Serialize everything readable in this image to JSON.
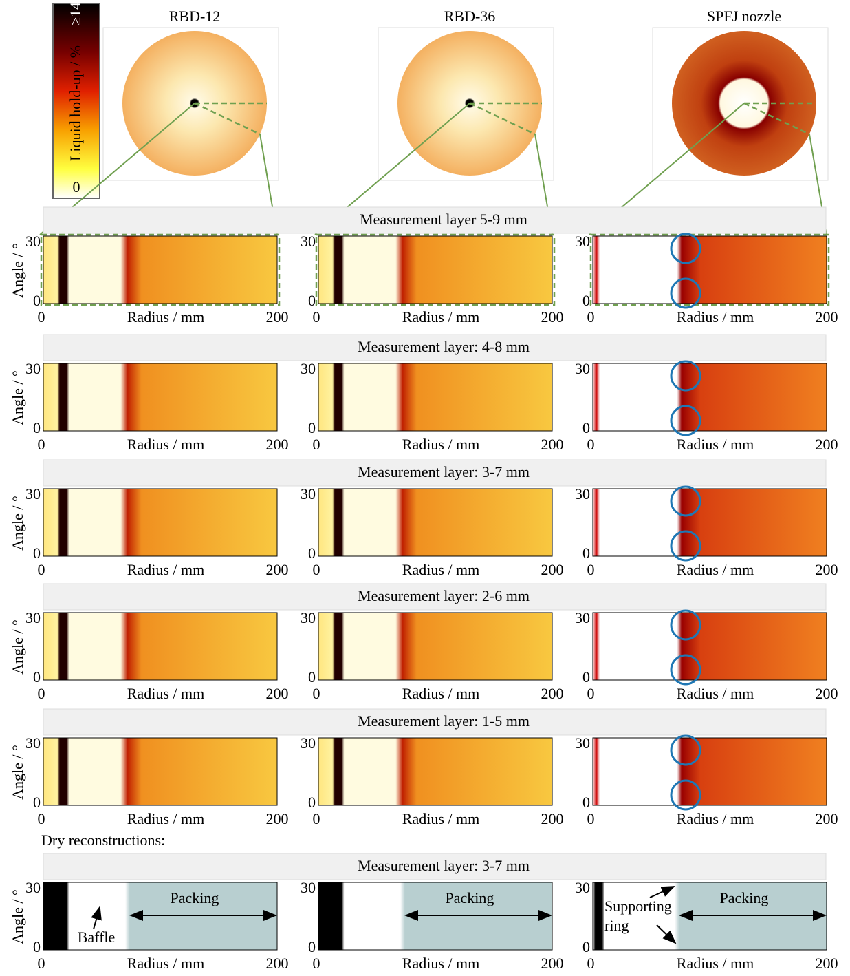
{
  "colorbar": {
    "max_label": "≥14",
    "min_label": "0",
    "label": "Liquid hold-up / %"
  },
  "columns": [
    "RBD-12",
    "RBD-36",
    "SPFJ nozzle"
  ],
  "axes": {
    "y_label": "Angle / °",
    "x_label": "Radius / mm",
    "xticks": [
      "0",
      "200"
    ],
    "yticks": [
      "0",
      "30"
    ]
  },
  "layers": [
    {
      "title": "Measurement layer 5-9 mm"
    },
    {
      "title": "Measurement layer: 4-8 mm"
    },
    {
      "title": "Measurement layer: 3-7 mm"
    },
    {
      "title": "Measurement layer: 2-6 mm"
    },
    {
      "title": "Measurement layer: 1-5 mm"
    }
  ],
  "dry_heading": "Dry reconstructions:",
  "dry_layer": {
    "title": "Measurement layer: 3-7 mm"
  },
  "annotations": {
    "packing": "Packing",
    "baffle": "Baffle",
    "supporting_ring": [
      "Supporting",
      "ring"
    ]
  }
}
